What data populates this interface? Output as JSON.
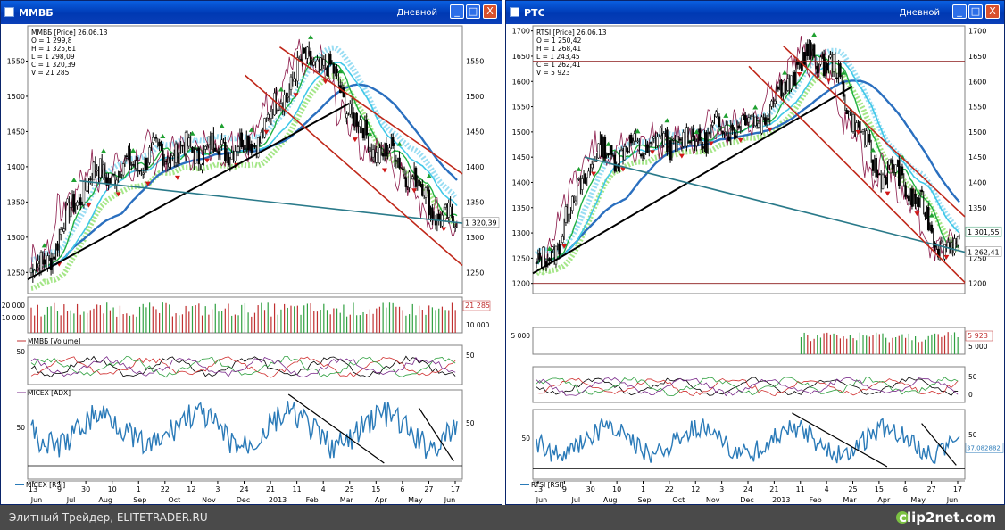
{
  "windows": [
    {
      "title": "ММВБ",
      "mode": "Дневной",
      "btn_min": "_",
      "btn_max": "□",
      "btn_close": "X",
      "price": {
        "info": [
          "ММВБ [Price] 26.06.13",
          "O = 1 299,8",
          "H = 1 325,61",
          "L = 1 298,09",
          "C = 1 320,39",
          "V = 21 285"
        ],
        "y_ticks": [
          1250,
          1300,
          1350,
          1400,
          1450,
          1500,
          1550
        ],
        "ylim": [
          1220,
          1600
        ],
        "last_value_label": "1 320,39",
        "last_value": 1320.39
      },
      "volume": {
        "y_ticks_left": [
          "20 000",
          "10 000"
        ],
        "y_ticks_right": [
          "10 000"
        ],
        "last_value_label": "21 285",
        "legend": "ММВБ [Volume]"
      },
      "adx": {
        "y_ticks_left": [
          "50"
        ],
        "y_ticks_right": [
          "50"
        ],
        "legend": "MICEX [ADX]"
      },
      "rsi": {
        "y_ticks_left": [
          "50"
        ],
        "y_ticks_right": [
          "50"
        ],
        "legend": "MICEX [RSI]"
      },
      "x_day_labels": [
        "13",
        "9",
        "30",
        "10",
        "1",
        "22",
        "12",
        "3",
        "24",
        "21",
        "11",
        "4",
        "25",
        "15",
        "6",
        "27",
        "17"
      ],
      "x_month_labels": [
        "Jun",
        "Jul",
        "Aug",
        "Sep",
        "Oct",
        "Nov",
        "Dec",
        "2013",
        "Feb",
        "Mar",
        "Apr",
        "May",
        "Jun"
      ],
      "seed": 7
    },
    {
      "title": "РТС",
      "mode": "Дневной",
      "btn_min": "_",
      "btn_max": "□",
      "btn_close": "X",
      "price": {
        "info": [
          "RTSI [Price] 26.06.13",
          "O = 1 250,42",
          "H = 1 268,41",
          "L = 1 243,45",
          "C = 1 262,41",
          "V = 5 923"
        ],
        "y_ticks": [
          1200,
          1250,
          1300,
          1350,
          1400,
          1450,
          1500,
          1550,
          1600,
          1650,
          1700
        ],
        "ylim": [
          1180,
          1710
        ],
        "last_value_label": "1 262,41",
        "second_value_label": "1 301,55",
        "last_value": 1262.41
      },
      "volume": {
        "y_ticks_left": [
          "5 000"
        ],
        "y_ticks_right": [
          "5 000"
        ],
        "last_value_label": "5 923",
        "legend": ""
      },
      "adx": {
        "y_ticks_left": [],
        "y_ticks_right": [
          "50",
          "0"
        ],
        "legend": ""
      },
      "rsi": {
        "y_ticks_left": [
          "50"
        ],
        "y_ticks_right": [
          "50"
        ],
        "last_value_label": "37,082882",
        "legend": "RTSI [RSI]"
      },
      "x_day_labels": [
        "13",
        "9",
        "30",
        "10",
        "1",
        "22",
        "12",
        "3",
        "24",
        "21",
        "11",
        "4",
        "25",
        "15",
        "6",
        "27",
        "17"
      ],
      "x_month_labels": [
        "Jun",
        "Jul",
        "Aug",
        "Sep",
        "Oct",
        "Nov",
        "Dec",
        "2013",
        "Feb",
        "Mar",
        "Apr",
        "May",
        "Jun"
      ],
      "seed": 13
    }
  ],
  "chart_data": [
    {
      "type": "line",
      "title": "ММВБ [Price] 26.06.13",
      "series": [
        {
          "name": "ММВБ",
          "x": [
            "Jun",
            "Aug",
            "Oct",
            "Dec",
            "Feb",
            "Apr",
            "Jun"
          ],
          "values": [
            1250,
            1390,
            1420,
            1430,
            1550,
            1420,
            1320
          ]
        }
      ],
      "ylim": [
        1220,
        1600
      ]
    },
    {
      "type": "line",
      "title": "RTSI [Price] 26.06.13",
      "series": [
        {
          "name": "RTSI",
          "x": [
            "Jun",
            "Aug",
            "Oct",
            "Dec",
            "Feb",
            "Apr",
            "Jun"
          ],
          "values": [
            1230,
            1460,
            1480,
            1520,
            1650,
            1420,
            1262
          ]
        }
      ],
      "ylim": [
        1180,
        1710
      ]
    }
  ],
  "footer": {
    "text": "Элитный Трейдер, ELITETRADER.RU",
    "brand": "clip2net.com"
  }
}
